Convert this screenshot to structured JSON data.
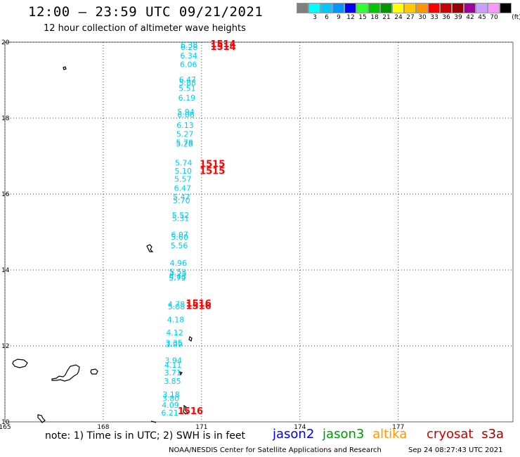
{
  "header": {
    "title": "12:00 – 23:59 UTC 09/21/2021",
    "subtitle": "12 hour collection of altimeter wave heights"
  },
  "color_scale": {
    "unit": "(ft)",
    "items": [
      {
        "label": "",
        "color": "#808080"
      },
      {
        "label": "3",
        "color": "#00ffff"
      },
      {
        "label": "6",
        "color": "#00c8ff"
      },
      {
        "label": "9",
        "color": "#0096ff"
      },
      {
        "label": "12",
        "color": "#0000ff"
      },
      {
        "label": "15",
        "color": "#32ff32"
      },
      {
        "label": "18",
        "color": "#00c800"
      },
      {
        "label": "21",
        "color": "#009600"
      },
      {
        "label": "24",
        "color": "#ffff00"
      },
      {
        "label": "27",
        "color": "#ffc800"
      },
      {
        "label": "30",
        "color": "#ff9600"
      },
      {
        "label": "33",
        "color": "#ff0000"
      },
      {
        "label": "36",
        "color": "#c80000"
      },
      {
        "label": "39",
        "color": "#960000"
      },
      {
        "label": "42",
        "color": "#a000a0"
      },
      {
        "label": "45",
        "color": "#c8a0ff"
      },
      {
        "label": "70",
        "color": "#ff96ff"
      },
      {
        "label": "",
        "color": "#000000"
      }
    ]
  },
  "map": {
    "lon_ticks": [
      165,
      168,
      171,
      174,
      177
    ],
    "lat_ticks": [
      10,
      12,
      14,
      16,
      18,
      20
    ],
    "lon_range": [
      165,
      180.5
    ],
    "lat_range": [
      10,
      20
    ],
    "grid": "dotted",
    "pass_color": "#00ccee",
    "time_color": "#ff0000",
    "readings": [
      {
        "lon": 170.62,
        "lat": 19.85,
        "value": "6.38"
      },
      {
        "lon": 170.62,
        "lat": 19.8,
        "value": "6.28"
      },
      {
        "lon": 170.61,
        "lat": 19.57,
        "value": "6.34"
      },
      {
        "lon": 170.6,
        "lat": 19.34,
        "value": "6.06"
      },
      {
        "lon": 170.57,
        "lat": 18.94,
        "value": "6.47"
      },
      {
        "lon": 170.57,
        "lat": 18.86,
        "value": "5.88"
      },
      {
        "lon": 170.56,
        "lat": 18.71,
        "value": "5.51"
      },
      {
        "lon": 170.55,
        "lat": 18.46,
        "value": "6.19"
      },
      {
        "lon": 170.52,
        "lat": 18.09,
        "value": "5.94"
      },
      {
        "lon": 170.52,
        "lat": 18.02,
        "value": "6.06"
      },
      {
        "lon": 170.5,
        "lat": 17.74,
        "value": "6.13"
      },
      {
        "lon": 170.49,
        "lat": 17.51,
        "value": "5.27"
      },
      {
        "lon": 170.48,
        "lat": 17.29,
        "value": "5.78"
      },
      {
        "lon": 170.48,
        "lat": 17.25,
        "value": "5.28"
      },
      {
        "lon": 170.45,
        "lat": 16.75,
        "value": "5.74"
      },
      {
        "lon": 170.44,
        "lat": 16.54,
        "value": "5.10"
      },
      {
        "lon": 170.43,
        "lat": 16.32,
        "value": "5.57"
      },
      {
        "lon": 170.42,
        "lat": 16.08,
        "value": "6.47"
      },
      {
        "lon": 170.39,
        "lat": 15.85,
        "value": "5.47"
      },
      {
        "lon": 170.39,
        "lat": 15.76,
        "value": "5.70"
      },
      {
        "lon": 170.36,
        "lat": 15.37,
        "value": "5.52"
      },
      {
        "lon": 170.36,
        "lat": 15.29,
        "value": "5.31"
      },
      {
        "lon": 170.33,
        "lat": 14.86,
        "value": "6.07"
      },
      {
        "lon": 170.33,
        "lat": 14.8,
        "value": "5.60"
      },
      {
        "lon": 170.32,
        "lat": 14.57,
        "value": "5.56"
      },
      {
        "lon": 170.29,
        "lat": 14.11,
        "value": "4.96"
      },
      {
        "lon": 170.28,
        "lat": 13.88,
        "value": "5.53"
      },
      {
        "lon": 170.28,
        "lat": 13.83,
        "value": "4.25"
      },
      {
        "lon": 170.27,
        "lat": 13.75,
        "value": "4.43"
      },
      {
        "lon": 170.26,
        "lat": 13.72,
        "value": "5.79"
      },
      {
        "lon": 170.23,
        "lat": 13.03,
        "value": "4.78"
      },
      {
        "lon": 170.23,
        "lat": 12.96,
        "value": "5.08"
      },
      {
        "lon": 170.21,
        "lat": 12.62,
        "value": "4.18"
      },
      {
        "lon": 170.18,
        "lat": 12.28,
        "value": "4.12"
      },
      {
        "lon": 170.16,
        "lat": 12.01,
        "value": "3.35"
      },
      {
        "lon": 170.16,
        "lat": 11.97,
        "value": "3.99"
      },
      {
        "lon": 170.14,
        "lat": 11.55,
        "value": "3.94"
      },
      {
        "lon": 170.13,
        "lat": 11.43,
        "value": "4.11"
      },
      {
        "lon": 170.12,
        "lat": 11.22,
        "value": "3.71"
      },
      {
        "lon": 170.11,
        "lat": 11.0,
        "value": "3.85"
      },
      {
        "lon": 170.07,
        "lat": 10.65,
        "value": "3.18"
      },
      {
        "lon": 170.06,
        "lat": 10.55,
        "value": "3.80"
      },
      {
        "lon": 170.05,
        "lat": 10.37,
        "value": "4.09"
      },
      {
        "lon": 170.03,
        "lat": 10.17,
        "value": "6.21"
      }
    ],
    "pass_times": [
      {
        "lon": 171.27,
        "lat": 19.87,
        "label": "1514"
      },
      {
        "lon": 171.27,
        "lat": 19.8,
        "label": "1514"
      },
      {
        "lon": 170.94,
        "lat": 16.71,
        "label": "1515"
      },
      {
        "lon": 170.94,
        "lat": 16.53,
        "label": "1515"
      },
      {
        "lon": 170.52,
        "lat": 13.04,
        "label": "1516"
      },
      {
        "lon": 170.52,
        "lat": 12.97,
        "label": "1516"
      },
      {
        "lon": 170.27,
        "lat": 10.2,
        "label": "1516"
      }
    ]
  },
  "footer": {
    "note": "note: 1) Time is in UTC; 2) SWH is in feet",
    "legend": [
      {
        "label": "jason2",
        "color": "#0000ee"
      },
      {
        "label": "jason3",
        "color": "#009900"
      },
      {
        "label": "altika",
        "color": "#ff9900"
      },
      {
        "label": "cryosat",
        "color": "#cc0000"
      },
      {
        "label": "s3a",
        "color": "#990000"
      }
    ],
    "credit": "NOAA/NESDIS Center for Satellite Applications and Research",
    "timestamp": "Sep 24 08:27:43 UTC 2021"
  }
}
